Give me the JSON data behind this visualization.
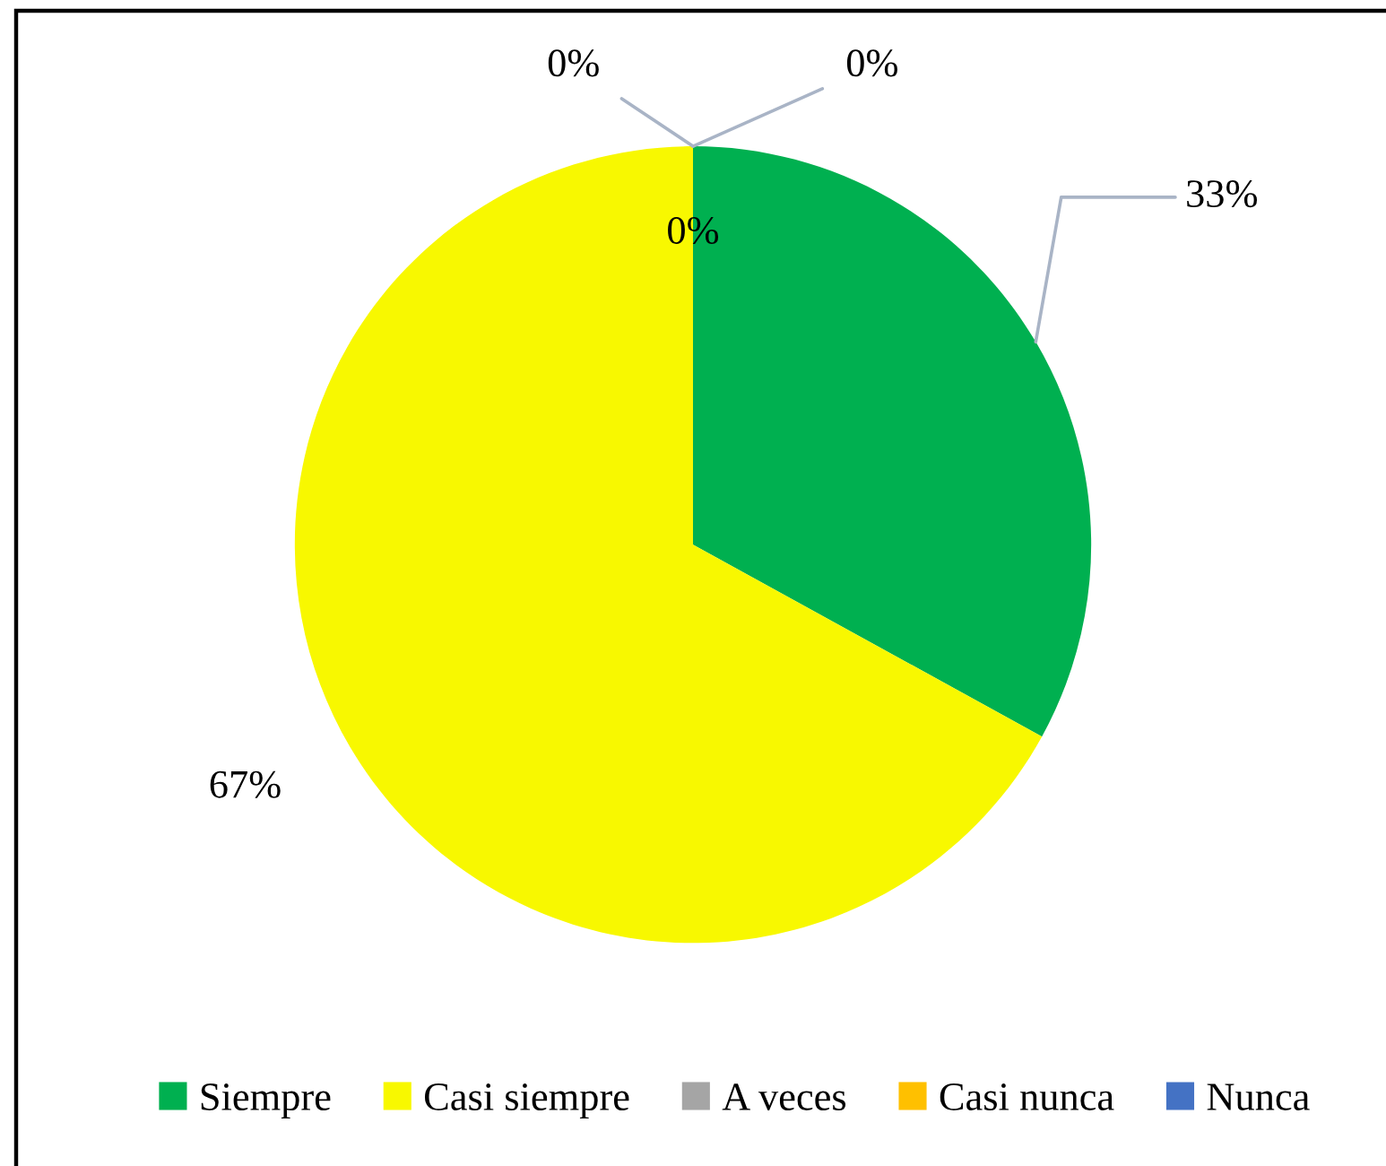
{
  "chart_data": {
    "type": "pie",
    "categories": [
      "Siempre",
      "Casi siempre",
      "A veces",
      "Casi nunca",
      "Nunca"
    ],
    "values": [
      33,
      67,
      0,
      0,
      0
    ],
    "colors": [
      "#00b050",
      "#f8f800",
      "#a5a5a5",
      "#ffc000",
      "#4472c4"
    ],
    "value_labels": [
      "33%",
      "67%",
      "0%",
      "0%",
      "0%"
    ],
    "legend": "bottom"
  }
}
